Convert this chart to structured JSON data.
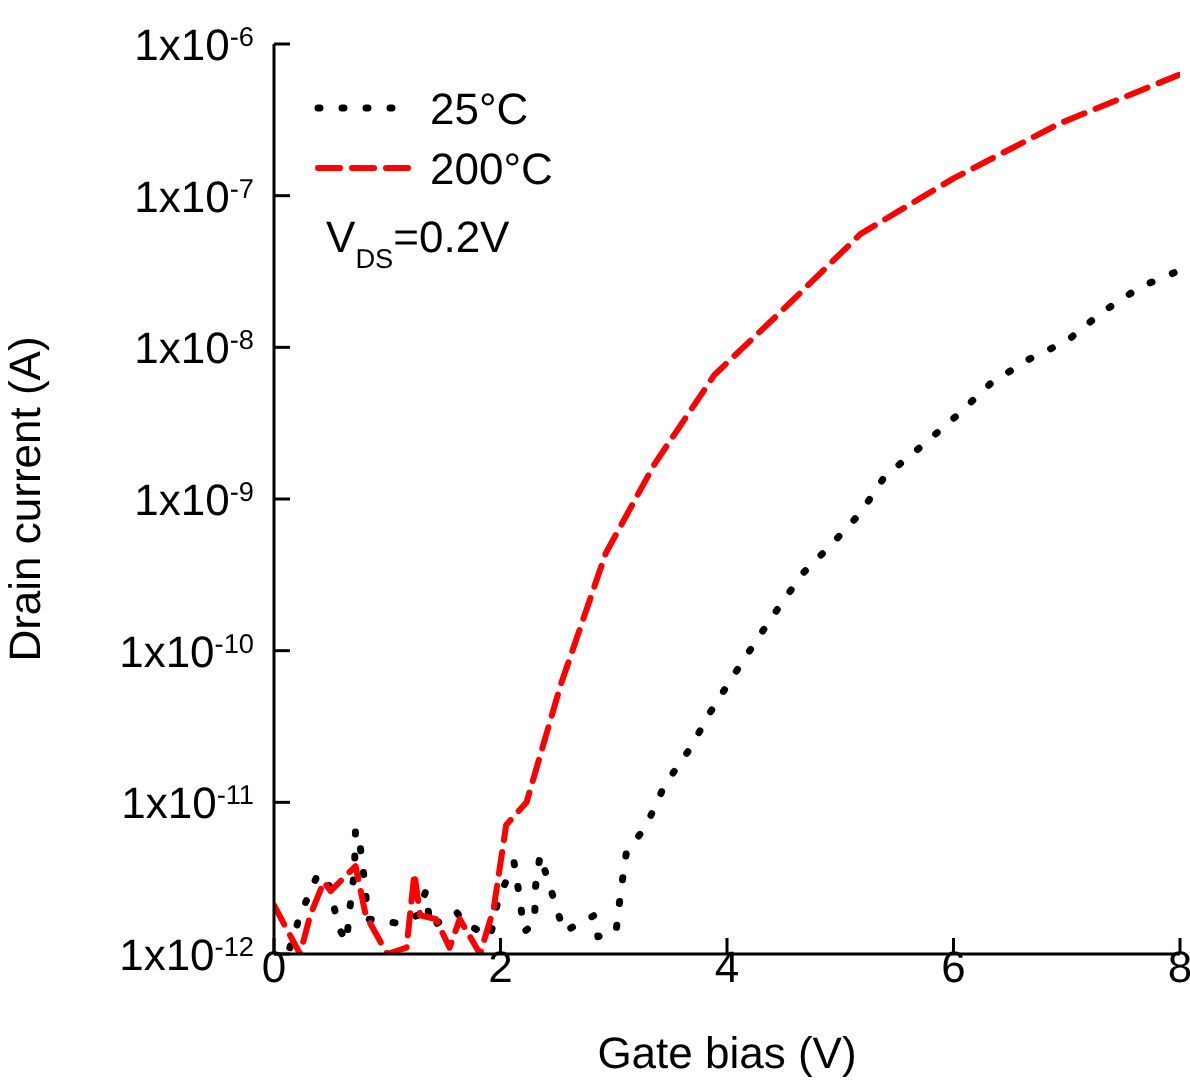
{
  "chart_data": {
    "type": "line",
    "xlabel": "Gate bias (V)",
    "ylabel": "Drain current (A)",
    "xlim": [
      0,
      8
    ],
    "xticks": [
      0,
      2,
      4,
      6,
      8
    ],
    "ylim": [
      1e-12,
      1e-06
    ],
    "yticks": [
      {
        "value": 1e-12,
        "label": "1x10$^{-12}$"
      },
      {
        "value": 1e-11,
        "label": "1x10$^{-11}$"
      },
      {
        "value": 1e-10,
        "label": "1x10$^{-10}$"
      },
      {
        "value": 1e-09,
        "label": "1x10$^{-9}$"
      },
      {
        "value": 1e-08,
        "label": "1x10$^{-8}$"
      },
      {
        "value": 1e-07,
        "label": "1x10$^{-7}$"
      },
      {
        "value": 1e-06,
        "label": "1x10$^{-6}$"
      }
    ],
    "log": "y",
    "grid": false,
    "legend": "top left",
    "marker": "none",
    "annotations": [
      "V$_{DS}$=0.2V"
    ],
    "series": [
      {
        "name": "25°C",
        "color": "#000000",
        "line_style": "dotted",
        "x": [
          0.14,
          0.23,
          0.39,
          0.49,
          0.57,
          0.64,
          0.67,
          0.71,
          0.72,
          0.76,
          0.8,
          0.83,
          1.08,
          1.27,
          1.34,
          1.38,
          1.61,
          1.68,
          1.91,
          1.98,
          2.12,
          2.16,
          2.21,
          2.3,
          2.31,
          2.35,
          2.56,
          2.83,
          2.86,
          3.02,
          3.06,
          3.11,
          3.29,
          3.45,
          3.68,
          3.85,
          4.06,
          4.27,
          4.49,
          4.68,
          4.91,
          5.18,
          5.39,
          5.74,
          6.02,
          6.33,
          6.66,
          7.0,
          7.31,
          7.65,
          7.99
        ],
        "values": [
          1.1e-12,
          1.8e-12,
          3.4e-12,
          2.8e-12,
          1.5e-12,
          1.2e-12,
          2e-12,
          3.5e-12,
          6.6e-12,
          5.2e-12,
          3e-12,
          1.7e-12,
          1.6e-12,
          1.8e-12,
          2.6e-12,
          1.5e-12,
          1.9e-12,
          1.6e-12,
          1.3e-12,
          2.3e-12,
          4e-12,
          2.6e-12,
          1.4e-12,
          1.6e-12,
          2.8e-12,
          4.5e-12,
          1.4e-12,
          1.8e-12,
          1.3e-12,
          1.4e-12,
          2.5e-12,
          4.6e-12,
          7.1e-12,
          1.3e-11,
          2.3e-11,
          3.9e-11,
          6.9e-11,
          1.2e-10,
          2.1e-10,
          3.3e-10,
          4.9e-10,
          8.1e-10,
          1.4e-09,
          2.3e-09,
          3.5e-09,
          5.8e-09,
          8.3e-09,
          1.1e-08,
          1.7e-08,
          2.5e-08,
          3.2e-08
        ]
      },
      {
        "name": "200°C",
        "color": "#ff0000",
        "line_style": "dashed",
        "x": [
          0.0,
          0.23,
          0.32,
          0.44,
          0.5,
          0.72,
          0.81,
          1.0,
          1.17,
          1.24,
          1.29,
          1.43,
          1.55,
          1.64,
          1.82,
          1.94,
          2.05,
          2.23,
          2.53,
          2.93,
          3.36,
          3.89,
          4.47,
          5.18,
          6.0,
          6.94,
          8.0
        ],
        "values": [
          2.1e-12,
          1e-12,
          1.8e-12,
          3e-12,
          2.6e-12,
          3.8e-12,
          1.8e-12,
          1e-12,
          1.1e-12,
          3.4e-12,
          1.8e-12,
          1.7e-12,
          1.1e-12,
          1.7e-12,
          1e-12,
          2e-12,
          7.1e-12,
          1e-11,
          5.9e-11,
          4.4e-10,
          1.7e-09,
          6.6e-09,
          1.7e-08,
          5.6e-08,
          1.3e-07,
          3e-07,
          6.3e-07
        ]
      }
    ]
  }
}
